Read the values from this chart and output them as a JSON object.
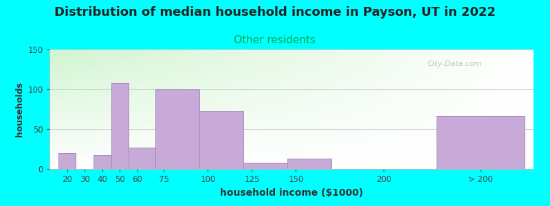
{
  "title": "Distribution of median household income in Payson, UT in 2022",
  "subtitle": "Other residents",
  "xlabel": "household income ($1000)",
  "ylabel": "households",
  "title_fontsize": 13,
  "subtitle_fontsize": 11,
  "subtitle_color": "#00aa44",
  "xlabel_fontsize": 10,
  "ylabel_fontsize": 9,
  "background_color": "#00ffff",
  "plot_bg_color": "#ffffff",
  "bar_color": "#c8aad8",
  "bar_edge_color": "#a888b8",
  "ylim": [
    0,
    150
  ],
  "yticks": [
    0,
    50,
    100,
    150
  ],
  "bar_heights": [
    20,
    0,
    17,
    108,
    27,
    100,
    72,
    8,
    13,
    0,
    66
  ],
  "bar_widths": [
    10,
    10,
    10,
    10,
    15,
    25,
    25,
    25,
    25,
    50,
    50
  ],
  "bar_lefts": [
    15,
    25,
    35,
    45,
    55,
    70,
    95,
    120,
    145,
    170,
    230
  ],
  "xtick_labels": [
    "20",
    "30",
    "40",
    "50",
    "60",
    "75",
    "100",
    "125",
    "150",
    "200",
    "> 200"
  ],
  "xtick_positions": [
    20,
    30,
    40,
    50,
    60,
    75,
    100,
    125,
    150,
    200,
    255
  ],
  "xlim": [
    10,
    285
  ],
  "watermark": "City-Data.com"
}
